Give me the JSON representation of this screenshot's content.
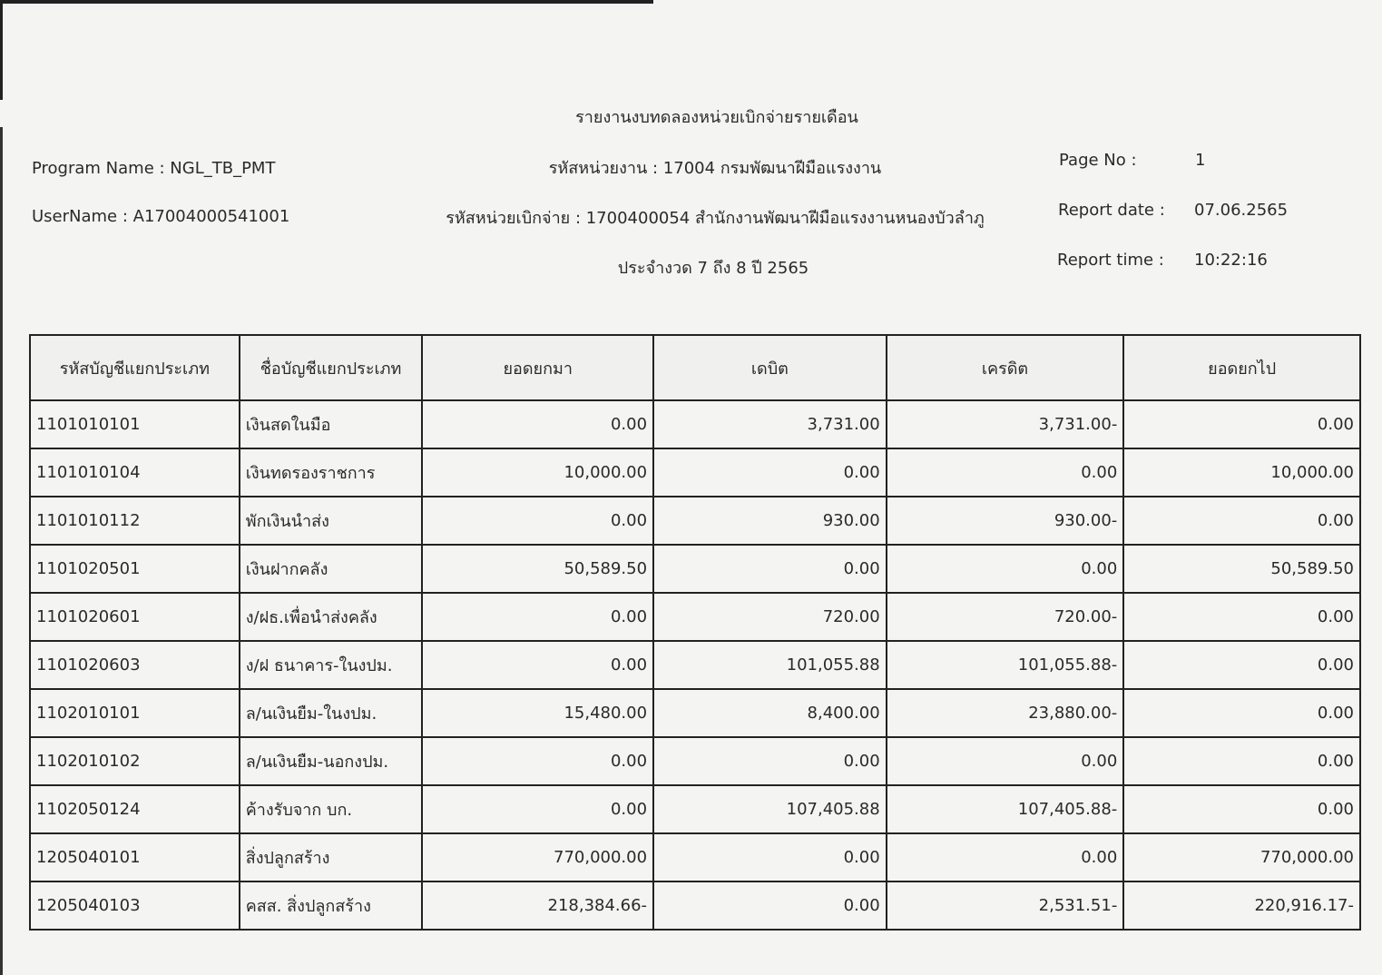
{
  "header": {
    "title": "รายงานงบทดลองหน่วยเบิกจ่ายรายเดือน",
    "agency": "รหัสหน่วยงาน : 17004 กรมพัฒนาฝีมือแรงงาน",
    "disbursing_unit": "รหัสหน่วยเบิกจ่าย : 1700400054 สำนักงานพัฒนาฝีมือแรงงานหนองบัวลำภู",
    "period": "ประจำงวด 7 ถึง 8 ปี 2565",
    "program_name": "Program Name : NGL_TB_PMT",
    "user_name": "UserName : A17004000541001",
    "page_no_label": "Page No :",
    "page_no": "1",
    "report_date_label": "Report date :",
    "report_date": "07.06.2565",
    "report_time_label": "Report time :",
    "report_time": "10:22:16"
  },
  "table": {
    "columns": [
      "รหัสบัญชีแยกประเภท",
      "ชื่อบัญชีแยกประเภท",
      "ยอดยกมา",
      "เดบิต",
      "เครดิต",
      "ยอดยกไป"
    ],
    "rows": [
      [
        "1101010101",
        "เงินสดในมือ",
        "0.00",
        "3,731.00",
        "3,731.00-",
        "0.00"
      ],
      [
        "1101010104",
        "เงินทดรองราชการ",
        "10,000.00",
        "0.00",
        "0.00",
        "10,000.00"
      ],
      [
        "1101010112",
        "พักเงินนำส่ง",
        "0.00",
        "930.00",
        "930.00-",
        "0.00"
      ],
      [
        "1101020501",
        "เงินฝากคลัง",
        "50,589.50",
        "0.00",
        "0.00",
        "50,589.50"
      ],
      [
        "1101020601",
        "ง/ฝธ.เพื่อนำส่งคลัง",
        "0.00",
        "720.00",
        "720.00-",
        "0.00"
      ],
      [
        "1101020603",
        "ง/ฝ ธนาคาร-ในงปม.",
        "0.00",
        "101,055.88",
        "101,055.88-",
        "0.00"
      ],
      [
        "1102010101",
        "ล/นเงินยืม-ในงปม.",
        "15,480.00",
        "8,400.00",
        "23,880.00-",
        "0.00"
      ],
      [
        "1102010102",
        "ล/นเงินยืม-นอกงปม.",
        "0.00",
        "0.00",
        "0.00",
        "0.00"
      ],
      [
        "1102050124",
        "ค้างรับจาก บก.",
        "0.00",
        "107,405.88",
        "107,405.88-",
        "0.00"
      ],
      [
        "1205040101",
        "สิ่งปลูกสร้าง",
        "770,000.00",
        "0.00",
        "0.00",
        "770,000.00"
      ],
      [
        "1205040103",
        "คสส. สิ่งปลูกสร้าง",
        "218,384.66-",
        "0.00",
        "2,531.51-",
        "220,916.17-"
      ]
    ]
  }
}
